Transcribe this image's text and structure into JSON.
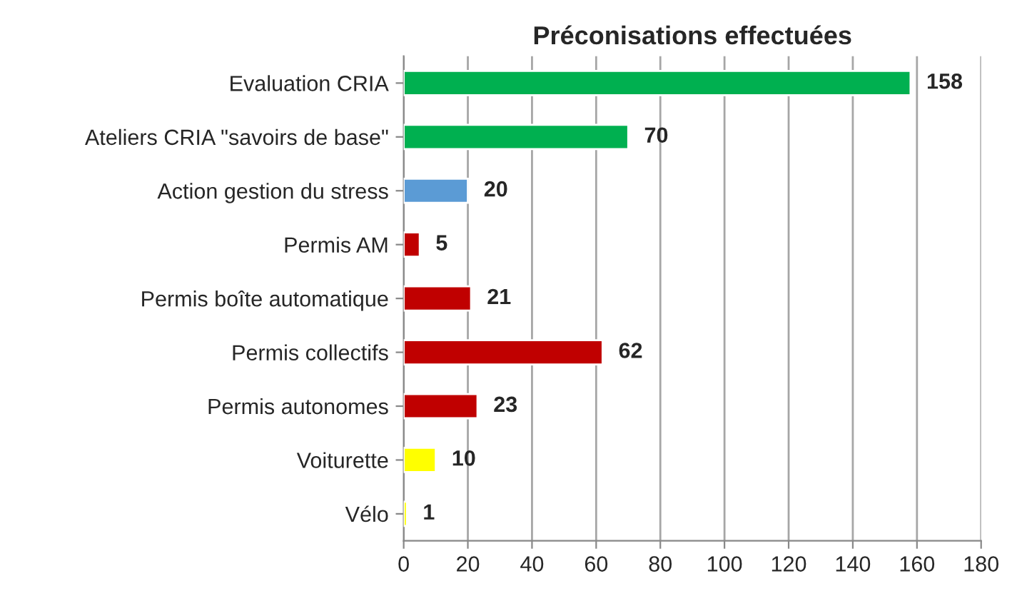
{
  "chart_data": {
    "type": "bar",
    "orientation": "horizontal",
    "title": "Préconisations effectuées",
    "categories": [
      "Evaluation CRIA",
      "Ateliers CRIA \"savoirs de base\"",
      "Action gestion du stress",
      "Permis AM",
      "Permis boîte automatique",
      "Permis collectifs",
      "Permis autonomes",
      "Voiturette",
      "Vélo"
    ],
    "values": [
      158,
      70,
      20,
      5,
      21,
      62,
      23,
      10,
      1
    ],
    "colors": [
      "#00b050",
      "#00b050",
      "#5b9bd5",
      "#c00000",
      "#c00000",
      "#c00000",
      "#c00000",
      "#ffff00",
      "#ffff00"
    ],
    "xlim": [
      0,
      180
    ],
    "xticks": [
      0,
      20,
      40,
      60,
      80,
      100,
      120,
      140,
      160,
      180
    ],
    "grid": "x",
    "data_labels": true
  }
}
